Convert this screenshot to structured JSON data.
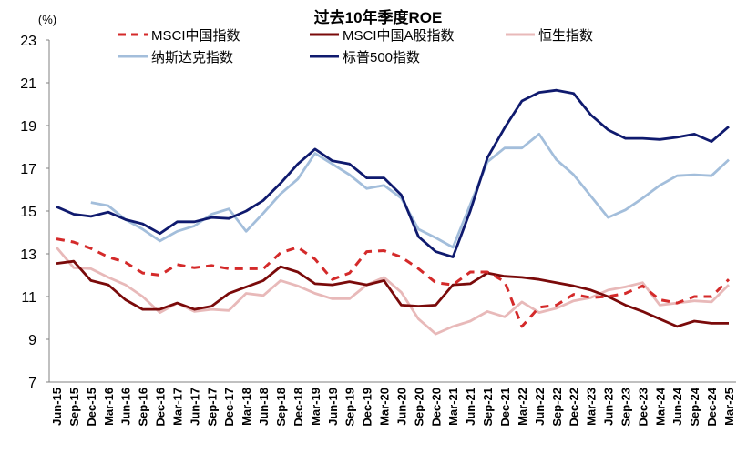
{
  "chart_data": {
    "type": "line",
    "title": "过去10年季度ROE",
    "ylabel": "(%)",
    "xlabel": "",
    "ylim": [
      7,
      23
    ],
    "yticks": [
      7,
      9,
      11,
      13,
      15,
      17,
      19,
      21,
      23
    ],
    "grid": false,
    "legend_position": "top",
    "categories": [
      "Jun-15",
      "Sep-15",
      "Dec-15",
      "Mar-16",
      "Jun-16",
      "Sep-16",
      "Dec-16",
      "Mar-17",
      "Jun-17",
      "Sep-17",
      "Dec-17",
      "Mar-18",
      "Jun-18",
      "Sep-18",
      "Dec-18",
      "Mar-19",
      "Jun-19",
      "Sep-19",
      "Dec-19",
      "Mar-20",
      "Jun-20",
      "Sep-20",
      "Dec-20",
      "Mar-21",
      "Jun-21",
      "Sep-21",
      "Dec-21",
      "Mar-22",
      "Jun-22",
      "Sep-22",
      "Dec-22",
      "Mar-23",
      "Jun-23",
      "Sep-23",
      "Dec-23",
      "Mar-24",
      "Jun-24",
      "Sep-24",
      "Dec-24",
      "Mar-25"
    ],
    "series": [
      {
        "name": "MSCI中国指数",
        "color": "#d42a2a",
        "dashed": true,
        "values": [
          13.7,
          13.55,
          13.25,
          12.85,
          12.6,
          12.1,
          12.0,
          12.5,
          12.35,
          12.45,
          12.3,
          12.3,
          12.3,
          13.05,
          13.3,
          12.75,
          11.8,
          12.1,
          13.1,
          13.15,
          12.85,
          12.3,
          11.65,
          11.55,
          12.15,
          12.15,
          11.7,
          9.6,
          10.5,
          10.6,
          11.1,
          10.95,
          11.0,
          11.15,
          11.5,
          10.85,
          10.7,
          11.0,
          11.0,
          11.8
        ]
      },
      {
        "name": "MSCI中国A股指数",
        "color": "#7a0a0a",
        "dashed": false,
        "values": [
          12.55,
          12.65,
          11.75,
          11.55,
          10.85,
          10.4,
          10.4,
          10.7,
          10.4,
          10.55,
          11.15,
          11.45,
          11.75,
          12.4,
          12.15,
          11.6,
          11.55,
          11.7,
          11.55,
          11.75,
          10.6,
          10.55,
          10.6,
          11.55,
          11.6,
          12.1,
          11.95,
          11.9,
          11.8,
          11.65,
          11.5,
          11.3,
          11.0,
          10.6,
          10.3,
          9.95,
          9.6,
          9.85,
          9.75,
          9.75
        ]
      },
      {
        "name": "恒生指数",
        "color": "#e8b9b9",
        "dashed": false,
        "values": [
          13.3,
          12.35,
          12.3,
          11.9,
          11.55,
          11.0,
          10.25,
          10.7,
          10.3,
          10.4,
          10.35,
          11.15,
          11.05,
          11.75,
          11.5,
          11.15,
          10.9,
          10.9,
          11.55,
          11.9,
          11.2,
          9.95,
          9.25,
          9.6,
          9.85,
          10.3,
          10.05,
          10.75,
          10.25,
          10.45,
          10.8,
          10.95,
          11.3,
          11.45,
          11.65,
          10.6,
          10.7,
          10.8,
          10.75,
          11.55
        ]
      },
      {
        "name": "纳斯达克指数",
        "color": "#a3bedb",
        "dashed": false,
        "values": [
          null,
          null,
          15.4,
          15.25,
          14.6,
          14.15,
          13.6,
          14.05,
          14.3,
          14.85,
          15.1,
          14.05,
          14.9,
          15.8,
          16.5,
          17.7,
          17.2,
          16.7,
          16.05,
          16.2,
          15.6,
          14.15,
          13.75,
          13.3,
          15.3,
          17.3,
          17.95,
          17.95,
          18.6,
          17.4,
          16.7,
          15.7,
          14.7,
          15.05,
          15.6,
          16.2,
          16.65,
          16.7,
          16.65,
          17.4
        ]
      },
      {
        "name": "标普500指数",
        "color": "#0f1a6e",
        "dashed": false,
        "values": [
          15.2,
          14.85,
          14.75,
          14.95,
          14.6,
          14.4,
          13.95,
          14.5,
          14.5,
          14.7,
          14.65,
          15.0,
          15.5,
          16.3,
          17.2,
          17.9,
          17.35,
          17.2,
          16.55,
          16.55,
          15.75,
          13.8,
          13.1,
          12.85,
          15.0,
          17.5,
          18.9,
          20.15,
          20.55,
          20.65,
          20.5,
          19.5,
          18.8,
          18.4,
          18.4,
          18.35,
          18.45,
          18.6,
          18.25,
          18.95
        ]
      }
    ]
  }
}
